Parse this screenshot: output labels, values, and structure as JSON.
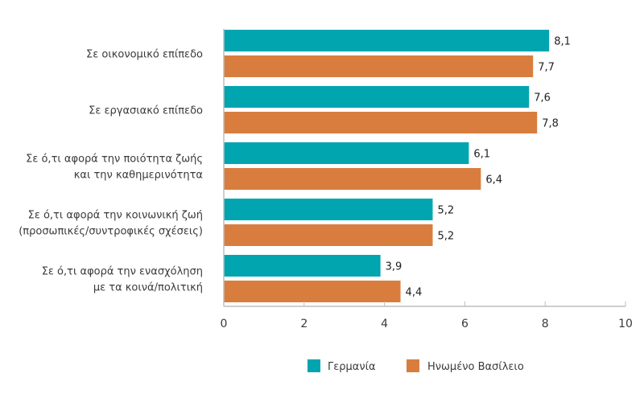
{
  "chart_data": {
    "type": "bar",
    "orientation": "horizontal",
    "title": "",
    "xlabel": "",
    "ylabel": "",
    "xlim": [
      0,
      10
    ],
    "x_ticks": [
      "0",
      "2",
      "4",
      "6",
      "8",
      "10"
    ],
    "grid": false,
    "legend_position": "bottom",
    "categories": [
      [
        "Σε οικονομικό επίπεδο"
      ],
      [
        "Σε εργασιακό επίπεδο"
      ],
      [
        "Σε ό,τι αφορά την ποιότητα ζωής",
        "και την καθημερινότητα"
      ],
      [
        "Σε ό,τι αφορά την κοινωνική ζωή",
        "(προσωπικές/συντροφικές σχέσεις)"
      ],
      [
        "Σε ό,τι αφορά την ενασχόληση",
        "με τα κοινά/πολιτική"
      ]
    ],
    "series": [
      {
        "name": "Γερμανία",
        "color": "#00a5b0",
        "values": [
          8.1,
          7.6,
          6.1,
          5.2,
          3.9
        ],
        "labels": [
          "8,1",
          "7,6",
          "6,1",
          "5,2",
          "3,9"
        ]
      },
      {
        "name": "Ηνωμένο Βασίλειο",
        "color": "#d97d3e",
        "values": [
          7.7,
          7.8,
          6.4,
          5.2,
          4.4
        ],
        "labels": [
          "7,7",
          "7,8",
          "6,4",
          "5,2",
          "4,4"
        ]
      }
    ]
  }
}
